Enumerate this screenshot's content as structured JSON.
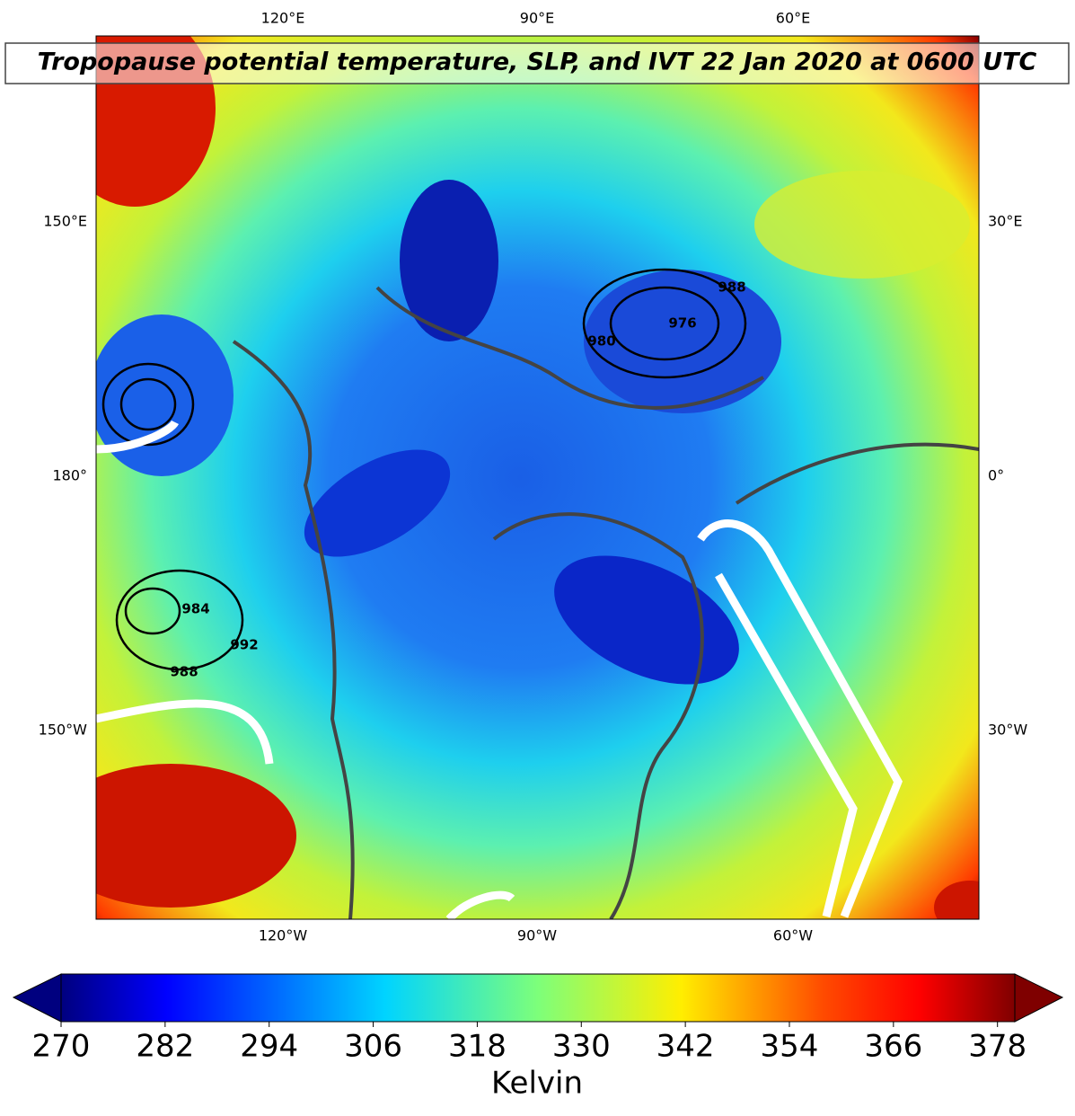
{
  "map": {
    "title": "Tropopause potential temperature, SLP, and IVT 22 Jan 2020 at 0600 UTC",
    "top_labels": [
      "120°E",
      "90°E",
      "60°E"
    ],
    "bottom_labels": [
      "120°W",
      "90°W",
      "60°W"
    ],
    "left_labels": [
      "150°E",
      "180°",
      "150°W"
    ],
    "right_labels": [
      "30°E",
      "0°",
      "30°W"
    ],
    "contour_labels": [
      "984",
      "992",
      "988",
      "980",
      "976",
      "988"
    ]
  },
  "colorbar": {
    "range": [
      270,
      380
    ],
    "ticks": [
      270,
      282,
      294,
      306,
      318,
      330,
      342,
      354,
      366,
      378
    ],
    "label": "Kelvin"
  }
}
